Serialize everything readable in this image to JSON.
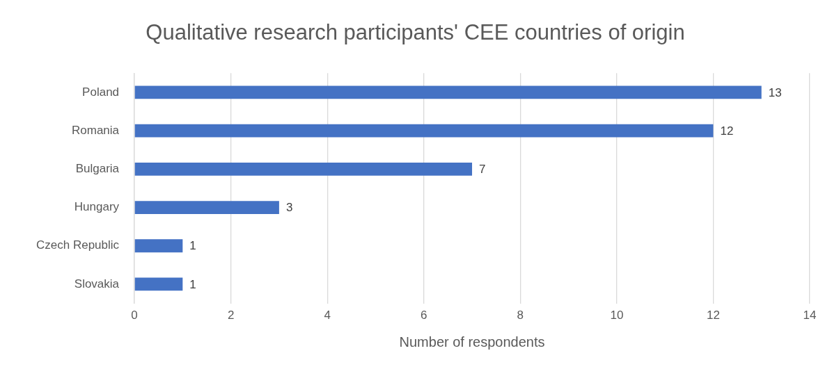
{
  "chart_data": {
    "type": "bar",
    "orientation": "horizontal",
    "title": "Qualitative research participants' CEE countries of origin",
    "xlabel": "Number of respondents",
    "categories": [
      "Poland",
      "Romania",
      "Bulgaria",
      "Hungary",
      "Czech Republic",
      "Slovakia"
    ],
    "values": [
      13,
      12,
      7,
      3,
      1,
      1
    ],
    "color": "#4472c4",
    "xlim": [
      0,
      14
    ],
    "xticks": [
      0,
      2,
      4,
      6,
      8,
      10,
      12,
      14
    ],
    "grid": "x",
    "data_labels": true
  }
}
